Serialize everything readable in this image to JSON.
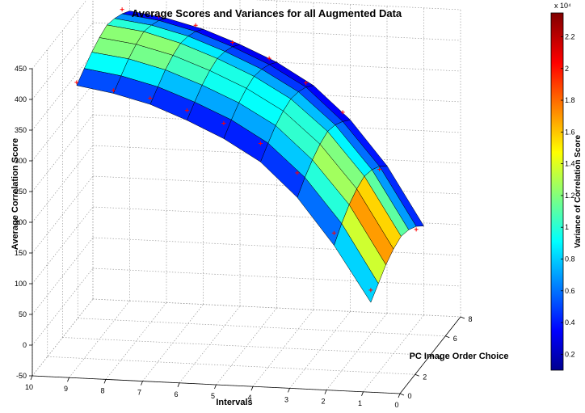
{
  "chart_data": {
    "type": "surface3d",
    "title": "Average Scores and Variances for all Augmented Data",
    "xlabel": "Intervals",
    "ylabel": "PC Image Order Choice",
    "zlabel": "Average Correlation Score",
    "colorbar_label": "Variance of Correlation Score",
    "colorbar_exponent": "x 10⁴",
    "colormap": "jet",
    "grid": true,
    "x_range": [
      0,
      10
    ],
    "y_range": [
      0,
      8
    ],
    "z_range": [
      -50,
      450
    ],
    "c_range": [
      0.1,
      2.35
    ],
    "x_ticks": [
      "10",
      "9",
      "8",
      "7",
      "6",
      "5",
      "4",
      "3",
      "2",
      "1",
      "0"
    ],
    "y_ticks": [
      "0",
      "2",
      "4",
      "6",
      "8"
    ],
    "z_ticks": [
      "-50",
      "0",
      "50",
      "100",
      "150",
      "200",
      "250",
      "300",
      "350",
      "400",
      "450"
    ],
    "c_ticks": [
      "0.2",
      "0.4",
      "0.6",
      "0.8",
      "1",
      "1.2",
      "1.4",
      "1.6",
      "1.8",
      "2",
      "2.2"
    ],
    "intervals": [
      1,
      2,
      3,
      4,
      5,
      6,
      7,
      8,
      9
    ],
    "order_choice": [
      1,
      2,
      3,
      4,
      5,
      6,
      7,
      8
    ],
    "average_score": [
      [
        80,
        95,
        110,
        120,
        125,
        120,
        110,
        95
      ],
      [
        170,
        190,
        205,
        215,
        220,
        215,
        205,
        190
      ],
      [
        245,
        262,
        275,
        285,
        290,
        285,
        275,
        262
      ],
      [
        300,
        315,
        328,
        336,
        340,
        336,
        328,
        315
      ],
      [
        335,
        350,
        362,
        370,
        374,
        370,
        362,
        350
      ],
      [
        362,
        376,
        388,
        396,
        400,
        396,
        388,
        376
      ],
      [
        385,
        398,
        410,
        418,
        422,
        418,
        410,
        398
      ],
      [
        400,
        413,
        425,
        433,
        438,
        433,
        425,
        413
      ],
      [
        410,
        422,
        433,
        441,
        446,
        441,
        433,
        422
      ]
    ],
    "variance_x1e4": [
      [
        0.6,
        1.4,
        1.9,
        2.1,
        1.6,
        1.0,
        0.6,
        0.4
      ],
      [
        0.5,
        0.9,
        1.4,
        1.5,
        1.2,
        0.8,
        0.5,
        0.4
      ],
      [
        0.4,
        0.7,
        1.1,
        1.2,
        1.0,
        0.7,
        0.5,
        0.3
      ],
      [
        0.3,
        0.6,
        0.9,
        1.0,
        0.9,
        0.6,
        0.4,
        0.3
      ],
      [
        0.3,
        0.6,
        0.9,
        1.0,
        0.9,
        0.6,
        0.4,
        0.3
      ],
      [
        0.3,
        0.6,
        0.9,
        1.1,
        1.0,
        0.7,
        0.4,
        0.3
      ],
      [
        0.3,
        0.7,
        1.0,
        1.3,
        1.1,
        0.8,
        0.5,
        0.3
      ],
      [
        0.3,
        0.8,
        1.1,
        1.4,
        1.2,
        0.9,
        0.5,
        0.3
      ],
      [
        0.3,
        0.8,
        1.1,
        1.3,
        1.1,
        0.9,
        0.5,
        0.3
      ]
    ],
    "marked_points": [
      {
        "interval": 1,
        "order": 1,
        "score": 100
      },
      {
        "interval": 1,
        "order": 7,
        "score": 105
      },
      {
        "interval": 2,
        "order": 1,
        "score": 190
      },
      {
        "interval": 2,
        "order": 7,
        "score": 200
      },
      {
        "interval": 3,
        "order": 1,
        "score": 285
      },
      {
        "interval": 3,
        "order": 7,
        "score": 290
      },
      {
        "interval": 4,
        "order": 1,
        "score": 330
      },
      {
        "interval": 4,
        "order": 7,
        "score": 335
      },
      {
        "interval": 5,
        "order": 1,
        "score": 360
      },
      {
        "interval": 5,
        "order": 7,
        "score": 372
      },
      {
        "interval": 6,
        "order": 1,
        "score": 378
      },
      {
        "interval": 6,
        "order": 7,
        "score": 395
      },
      {
        "interval": 7,
        "order": 1,
        "score": 395
      },
      {
        "interval": 7,
        "order": 7,
        "score": 420
      },
      {
        "interval": 8,
        "order": 1,
        "score": 405
      },
      {
        "interval": 8,
        "order": 7,
        "score": 432
      },
      {
        "interval": 9,
        "order": 1,
        "score": 415
      },
      {
        "interval": 9,
        "order": 7,
        "score": 440
      }
    ]
  }
}
